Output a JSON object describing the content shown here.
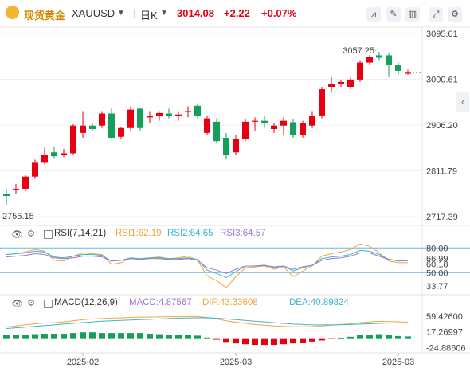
{
  "header": {
    "symbol_name": "现货黄金",
    "symbol_code": "XAUUSD",
    "interval": "日K",
    "price": "3014.08",
    "change": "+2.22",
    "change_pct": "+0.07%"
  },
  "icons": [
    "gold-coin-icon",
    "chevron-down-icon",
    "chart-type-icon",
    "draw-icon",
    "indicator-icon",
    "fullscreen-icon",
    "gear-icon",
    "chevron-left-icon",
    "eye-icon",
    "settings-icon"
  ],
  "colors": {
    "up": "#e60012",
    "down": "#14a05a",
    "ma1": "#f5a33c",
    "ma2": "#3fb5c9",
    "ma3": "#9a78d6",
    "ref": "#62b8ea"
  },
  "chart_data": [
    {
      "type": "candlestick",
      "price_axis_ticks": [
        "3095.01",
        "3000.61",
        "2906.20",
        "2811.79",
        "2717.39"
      ],
      "ylim": [
        2717.39,
        3095.01
      ],
      "x_ticks": [
        "2025-02",
        "2025-03",
        "2025-03"
      ],
      "annotations": {
        "high_label": "3057.25",
        "low_label": "2755.15"
      },
      "candles": [
        [
          2765,
          2775,
          2742,
          2760
        ],
        [
          2775,
          2785,
          2765,
          2775
        ],
        [
          2775,
          2803,
          2770,
          2800
        ],
        [
          2800,
          2835,
          2795,
          2830
        ],
        [
          2830,
          2860,
          2825,
          2845
        ],
        [
          2850,
          2862,
          2838,
          2842
        ],
        [
          2845,
          2857,
          2840,
          2848
        ],
        [
          2848,
          2908,
          2844,
          2905
        ],
        [
          2890,
          2935,
          2880,
          2905
        ],
        [
          2905,
          2910,
          2895,
          2898
        ],
        [
          2905,
          2935,
          2900,
          2930
        ],
        [
          2930,
          2940,
          2878,
          2880
        ],
        [
          2882,
          2902,
          2877,
          2900
        ],
        [
          2900,
          2945,
          2895,
          2938
        ],
        [
          2940,
          2942,
          2895,
          2900
        ],
        [
          2922,
          2935,
          2910,
          2925
        ],
        [
          2925,
          2935,
          2915,
          2931
        ],
        [
          2930,
          2940,
          2920,
          2925
        ],
        [
          2925,
          2935,
          2915,
          2928
        ],
        [
          2935,
          2945,
          2922,
          2935
        ],
        [
          2946,
          2950,
          2920,
          2925
        ],
        [
          2890,
          2925,
          2885,
          2920
        ],
        [
          2913,
          2920,
          2868,
          2873
        ],
        [
          2880,
          2890,
          2835,
          2845
        ],
        [
          2850,
          2885,
          2845,
          2878
        ],
        [
          2878,
          2920,
          2873,
          2913
        ],
        [
          2913,
          2922,
          2895,
          2915
        ],
        [
          2915,
          2925,
          2900,
          2910
        ],
        [
          2898,
          2910,
          2890,
          2905
        ],
        [
          2905,
          2922,
          2885,
          2915
        ],
        [
          2912,
          2918,
          2880,
          2885
        ],
        [
          2885,
          2915,
          2880,
          2910
        ],
        [
          2905,
          2935,
          2900,
          2925
        ],
        [
          2926,
          2985,
          2920,
          2980
        ],
        [
          2985,
          3005,
          2972,
          2990
        ],
        [
          2990,
          3000,
          2985,
          2995
        ],
        [
          2985,
          3005,
          2980,
          3000
        ],
        [
          3000,
          3040,
          2995,
          3035
        ],
        [
          3035,
          3050,
          3030,
          3046
        ],
        [
          3050,
          3057.25,
          3040,
          3045
        ],
        [
          3050,
          3055,
          3005,
          3030
        ],
        [
          3030,
          3035,
          3010,
          3018
        ],
        [
          3012,
          3020,
          3010,
          3014.08
        ]
      ]
    },
    {
      "type": "line",
      "indicator": "RSI(7,14,21)",
      "legend": [
        "RSI1:62.19",
        "RSI2:64.65",
        "RSI3:64.57"
      ],
      "axis_ticks": [
        "80.00",
        "66.99",
        "60.18",
        "50.00",
        "33.77"
      ],
      "ylim": [
        28,
        88
      ],
      "reference_levels": [
        80,
        50
      ],
      "series": [
        {
          "name": "RSI1",
          "values": [
            72,
            73,
            75,
            78,
            76,
            65,
            64,
            70,
            74,
            73,
            72,
            60,
            62,
            68,
            66,
            68,
            69,
            67,
            68,
            70,
            65,
            46,
            40,
            32,
            45,
            56,
            57,
            58,
            54,
            57,
            45,
            52,
            58,
            70,
            73,
            75,
            78,
            85,
            82,
            74,
            64,
            62,
            62.19
          ]
        },
        {
          "name": "RSI2",
          "values": [
            72,
            73,
            74,
            76,
            75,
            69,
            68,
            70,
            72,
            72,
            71,
            64,
            65,
            68,
            67,
            68,
            68,
            67,
            67,
            68,
            66,
            53,
            49,
            44,
            51,
            58,
            58,
            59,
            56,
            58,
            52,
            56,
            59,
            67,
            69,
            70,
            72,
            77,
            76,
            72,
            66,
            64,
            64.65
          ]
        },
        {
          "name": "RSI3",
          "values": [
            69,
            70,
            71,
            73,
            72,
            68,
            67,
            68,
            70,
            70,
            69,
            64,
            65,
            67,
            66,
            67,
            67,
            66,
            66,
            67,
            65,
            56,
            53,
            49,
            54,
            58,
            58,
            59,
            57,
            58,
            54,
            57,
            59,
            65,
            67,
            68,
            70,
            74,
            74,
            70,
            66,
            64.5,
            64.57
          ]
        }
      ]
    },
    {
      "type": "bar+line",
      "indicator": "MACD(12,26,9)",
      "legend": [
        "MACD:4.87567",
        "DIF:43.33608",
        "DEA:40.89824"
      ],
      "axis_ticks": [
        "59.42600",
        "17.26997",
        "-24.88606"
      ],
      "ylim": [
        -35,
        70
      ],
      "series": [
        {
          "name": "DIF",
          "values": [
            30,
            33,
            36,
            39,
            41,
            42,
            44,
            47,
            50,
            52,
            53,
            54,
            55,
            56,
            57,
            57,
            57.5,
            58,
            58,
            58.5,
            58.5,
            56,
            52,
            47,
            43,
            40,
            37,
            35,
            33,
            32,
            31,
            31,
            31.5,
            33,
            35,
            37,
            39,
            42,
            44,
            45.5,
            45,
            44,
            43.34
          ]
        },
        {
          "name": "DEA",
          "values": [
            26,
            28,
            30,
            32,
            34,
            36,
            38,
            40,
            42,
            44,
            46,
            47,
            48,
            49,
            50,
            51,
            52,
            53,
            54,
            54.5,
            55,
            55,
            54,
            52,
            50,
            48,
            46,
            44,
            42,
            40,
            38,
            37,
            36,
            36,
            36,
            36.5,
            37,
            38,
            39,
            40,
            41,
            41,
            40.9
          ]
        },
        {
          "name": "MACD",
          "values": [
            8,
            9,
            10,
            11,
            12,
            12,
            12,
            14,
            16,
            16,
            14,
            14,
            14,
            14,
            14,
            12,
            11,
            10,
            8,
            8,
            7,
            2,
            -4,
            -10,
            -14,
            -16,
            -18,
            -18,
            -18,
            -16,
            -14,
            -12,
            -9,
            -6,
            -2,
            1,
            4,
            8,
            10,
            11,
            8,
            6,
            4.88
          ]
        }
      ]
    }
  ]
}
